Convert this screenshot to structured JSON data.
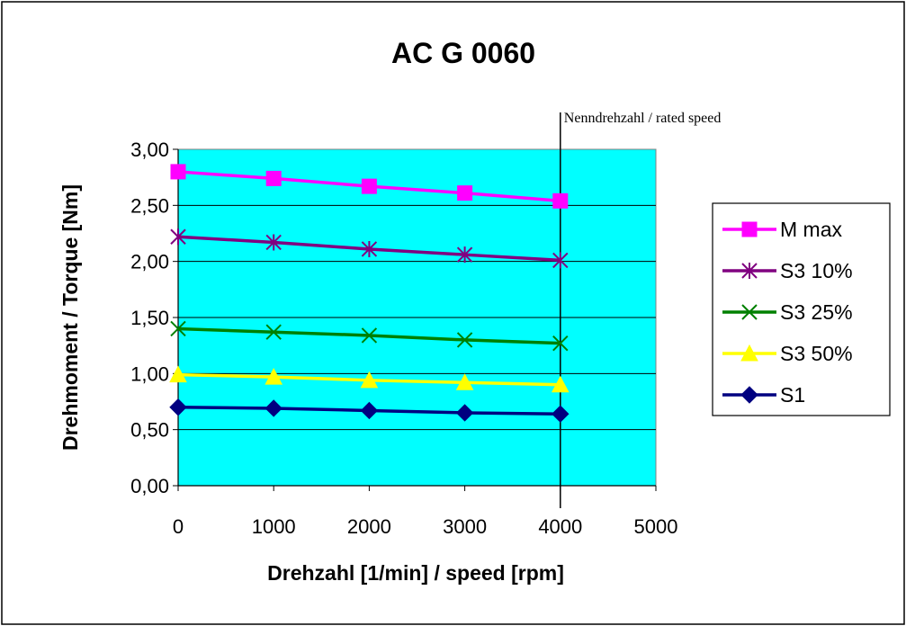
{
  "chart_data": {
    "type": "line",
    "title": "AC G 0060",
    "xlabel": "Drehzahl [1/min] / speed [rpm]",
    "ylabel": "Drehmoment / Torque [Nm]",
    "x": [
      0,
      1000,
      2000,
      3000,
      4000
    ],
    "x_ticks": [
      "0",
      "1000",
      "2000",
      "3000",
      "4000",
      "5000"
    ],
    "y_ticks": [
      "0,00",
      "0,50",
      "1,00",
      "1,50",
      "2,00",
      "2,50",
      "3,00"
    ],
    "xlim": [
      0,
      5000
    ],
    "ylim": [
      0,
      3
    ],
    "plot_background": "#00ffff",
    "grid": true,
    "legend_position": "right",
    "annotation": {
      "text": "Nenndrehzahl / rated speed",
      "x": 4000
    },
    "series": [
      {
        "name": "M max",
        "values": [
          2.8,
          2.74,
          2.67,
          2.61,
          2.54
        ],
        "color": "#ff00ff",
        "marker": "square"
      },
      {
        "name": "S3 10%",
        "values": [
          2.22,
          2.17,
          2.11,
          2.06,
          2.01
        ],
        "color": "#800080",
        "marker": "asterisk"
      },
      {
        "name": "S3 25%",
        "values": [
          1.4,
          1.37,
          1.34,
          1.3,
          1.27
        ],
        "color": "#008000",
        "marker": "x"
      },
      {
        "name": "S3 50%",
        "values": [
          0.99,
          0.97,
          0.94,
          0.92,
          0.9
        ],
        "color": "#ffff00",
        "marker": "triangle"
      },
      {
        "name": "S1",
        "values": [
          0.7,
          0.69,
          0.67,
          0.65,
          0.64
        ],
        "color": "#000080",
        "marker": "diamond"
      }
    ]
  }
}
